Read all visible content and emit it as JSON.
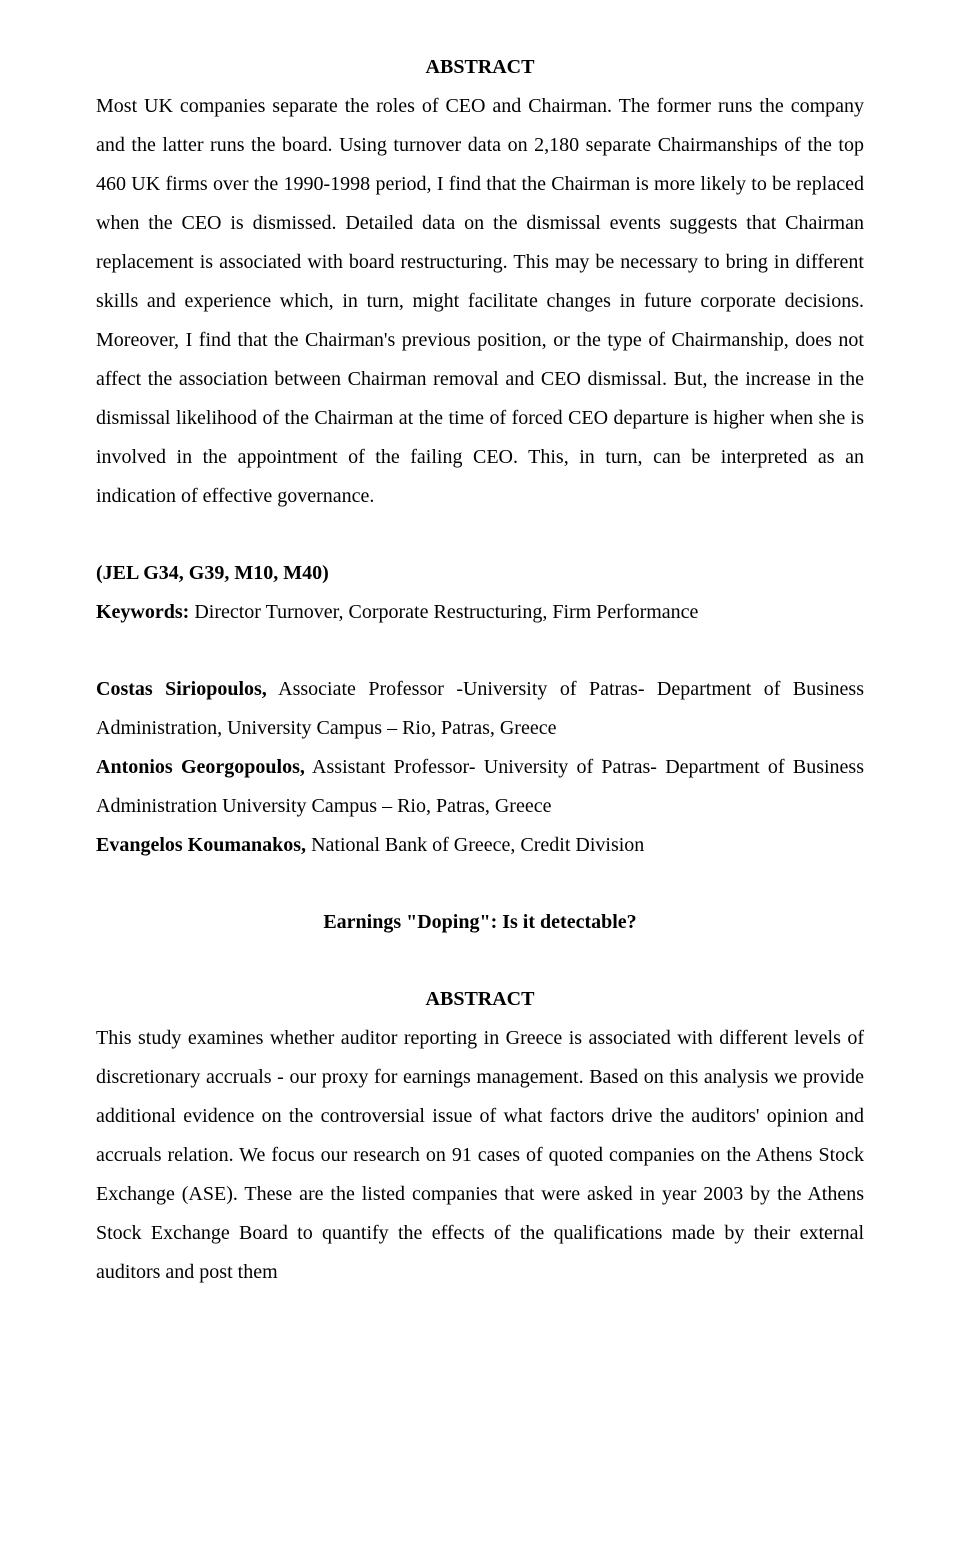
{
  "section1": {
    "heading": "ABSTRACT",
    "body": "Most UK companies separate the roles of CEO and Chairman. The former runs the company and the latter runs the board. Using turnover data on 2,180 separate Chairmanships of the top 460 UK firms over the 1990-1998 period, I find that the Chairman is more likely to be replaced when the CEO is dismissed. Detailed data on the dismissal events suggests that Chairman replacement is associated with board restructuring. This may be necessary to bring in different skills and experience which, in turn, might facilitate changes in future corporate decisions. Moreover, I find that the Chairman's previous position, or the type of Chairmanship, does not affect the association between Chairman removal and CEO dismissal. But, the increase in the dismissal likelihood of the Chairman at the time of forced CEO departure is higher when she is involved in the appointment of the failing CEO. This, in turn, can be interpreted as an indication of effective governance."
  },
  "jel": "(JEL G34, G39, M10, M40)",
  "keywords": {
    "label": "Keywords: ",
    "text": "Director Turnover, Corporate Restructuring, Firm Performance"
  },
  "authors": [
    {
      "name": "Costas Siriopoulos,",
      "rest": " Associate Professor -University of Patras- Department of Business Administration, University Campus – Rio, Patras, Greece"
    },
    {
      "name": "Antonios Georgopoulos,",
      "rest": " Assistant Professor- University of Patras- Department of Business Administration University Campus – Rio, Patras, Greece"
    },
    {
      "name": "Evangelos Koumanakos,",
      "rest": " National Bank of Greece, Credit Division"
    }
  ],
  "title2": "Earnings \"Doping\": Is it detectable?",
  "section2": {
    "heading": "ABSTRACT",
    "body": "This study examines whether auditor reporting in Greece is associated with different levels of discretionary accruals - our proxy for earnings management. Based on this analysis we provide additional evidence on the controversial issue of what factors drive the auditors' opinion and accruals relation. We focus our research on 91 cases of quoted companies on the Athens Stock Exchange (ASE). These are the listed companies that were asked in year 2003 by the Athens Stock Exchange Board to quantify the effects of the qualifications made by their external auditors and post them"
  }
}
